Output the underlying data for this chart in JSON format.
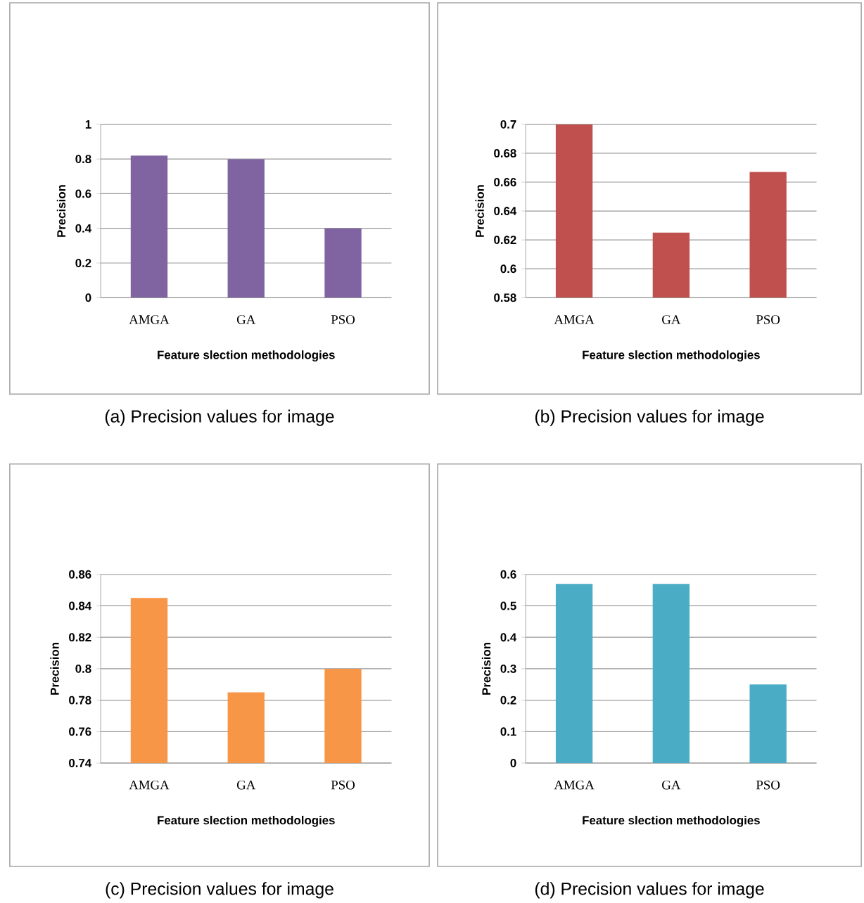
{
  "chart_data": [
    {
      "type": "bar",
      "xlabel": "Feature slection methodologies",
      "ylabel": "Precision",
      "categories": [
        "AMGA",
        "GA",
        "PSO"
      ],
      "values": [
        0.82,
        0.8,
        0.4
      ],
      "color": "#8064a2",
      "ylim": [
        0,
        1
      ],
      "yticks": [
        0,
        0.2,
        0.4,
        0.6,
        0.8,
        1
      ],
      "grid": "y",
      "annotations": [
        "(a) Precision values for image"
      ]
    },
    {
      "type": "bar",
      "xlabel": "Feature slection methodologies",
      "ylabel": "Precision",
      "categories": [
        "AMGA",
        "GA",
        "PSO"
      ],
      "values": [
        0.7,
        0.625,
        0.667
      ],
      "color": "#c0504d",
      "ylim": [
        0.58,
        0.7
      ],
      "yticks": [
        0.58,
        0.6,
        0.62,
        0.64,
        0.66,
        0.68,
        0.7
      ],
      "grid": "y",
      "annotations": [
        "(b) Precision values for image"
      ]
    },
    {
      "type": "bar",
      "xlabel": "Feature slection methodologies",
      "ylabel": "Precision",
      "categories": [
        "AMGA",
        "GA",
        "PSO"
      ],
      "values": [
        0.845,
        0.785,
        0.8
      ],
      "color": "#f79646",
      "ylim": [
        0.74,
        0.86
      ],
      "yticks": [
        0.74,
        0.76,
        0.78,
        0.8,
        0.82,
        0.84,
        0.86
      ],
      "grid": "y",
      "annotations": [
        "(c) Precision values for image"
      ]
    },
    {
      "type": "bar",
      "xlabel": "Feature slection methodologies",
      "ylabel": "Precision",
      "categories": [
        "AMGA",
        "GA",
        "PSO"
      ],
      "values": [
        0.57,
        0.57,
        0.25
      ],
      "color": "#4bacc6",
      "ylim": [
        0,
        0.6
      ],
      "yticks": [
        0,
        0.1,
        0.2,
        0.3,
        0.4,
        0.5,
        0.6
      ],
      "grid": "y",
      "annotations": [
        "(d) Precision values for image"
      ]
    }
  ]
}
